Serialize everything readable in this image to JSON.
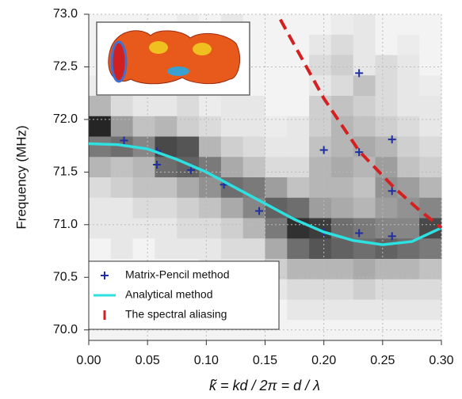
{
  "chart_data": {
    "type": "heatmap",
    "xlabel": "k̃ = kd / 2π = d / λ",
    "ylabel": "Frequency (MHz)",
    "xlim": [
      0,
      0.3
    ],
    "ylim": [
      69.9,
      73.0
    ],
    "xticks": [
      {
        "value": 0,
        "label": "0.00"
      },
      0.05,
      {
        "value": 0.1,
        "label": "0.10"
      },
      0.15,
      {
        "value": 0.2,
        "label": "0.20"
      },
      0.25,
      {
        "value": 0.3,
        "label": "0.30"
      }
    ],
    "yticks": [
      {
        "value": 70,
        "label": "70.0"
      },
      70.5,
      {
        "value": 71,
        "label": "71.0"
      },
      71.5,
      {
        "value": 72,
        "label": "72.0"
      },
      72.5,
      {
        "value": 73,
        "label": "73.0"
      }
    ],
    "grid": true,
    "legend": "bottom-left",
    "heatmap": {
      "z": [
        [
          5,
          5,
          5,
          5,
          8,
          5,
          10,
          5,
          5,
          5,
          5,
          8,
          10,
          5,
          5,
          5
        ],
        [
          5,
          5,
          5,
          5,
          5,
          5,
          5,
          5,
          5,
          5,
          10,
          15,
          10,
          5,
          8,
          5
        ],
        [
          5,
          5,
          5,
          5,
          5,
          5,
          5,
          5,
          5,
          5,
          15,
          20,
          10,
          15,
          10,
          5
        ],
        [
          8,
          5,
          5,
          5,
          5,
          5,
          5,
          5,
          5,
          5,
          10,
          15,
          25,
          15,
          10,
          8
        ],
        [
          30,
          15,
          10,
          10,
          15,
          8,
          10,
          10,
          5,
          5,
          20,
          25,
          20,
          15,
          10,
          10
        ],
        [
          90,
          40,
          25,
          30,
          20,
          15,
          10,
          10,
          8,
          10,
          20,
          30,
          25,
          20,
          15,
          10
        ],
        [
          55,
          60,
          50,
          75,
          70,
          30,
          20,
          15,
          10,
          10,
          25,
          30,
          35,
          30,
          20,
          15
        ],
        [
          30,
          25,
          30,
          60,
          65,
          55,
          35,
          25,
          15,
          15,
          30,
          35,
          30,
          40,
          25,
          20
        ],
        [
          15,
          20,
          25,
          25,
          35,
          45,
          60,
          55,
          40,
          25,
          30,
          30,
          25,
          45,
          40,
          30
        ],
        [
          10,
          10,
          15,
          15,
          20,
          25,
          35,
          50,
          65,
          60,
          40,
          35,
          30,
          40,
          45,
          50
        ],
        [
          10,
          10,
          10,
          10,
          15,
          15,
          20,
          30,
          55,
          85,
          80,
          60,
          55,
          50,
          50,
          75
        ],
        [
          5,
          10,
          5,
          10,
          10,
          10,
          15,
          15,
          35,
          60,
          70,
          65,
          60,
          65,
          60,
          55
        ],
        [
          5,
          5,
          5,
          5,
          5,
          10,
          10,
          10,
          20,
          30,
          30,
          30,
          35,
          30,
          30,
          25
        ],
        [
          5,
          5,
          5,
          5,
          5,
          5,
          5,
          10,
          10,
          15,
          15,
          15,
          20,
          15,
          15,
          15
        ],
        [
          5,
          5,
          5,
          5,
          5,
          5,
          5,
          5,
          5,
          10,
          10,
          10,
          10,
          10,
          10,
          10
        ],
        [
          5,
          5,
          5,
          5,
          5,
          5,
          5,
          5,
          5,
          5,
          5,
          5,
          5,
          5,
          5,
          5
        ]
      ]
    },
    "series": [
      {
        "name": "Matrix-Pencil method",
        "type": "scatter",
        "color": "#1f2fa0",
        "x": [
          0.03,
          0.058,
          0.058,
          0.087,
          0.115,
          0.145,
          0.2,
          0.2,
          0.23,
          0.23,
          0.23,
          0.258,
          0.258,
          0.258
        ],
        "values": [
          71.8,
          71.7,
          71.57,
          71.52,
          71.38,
          71.13,
          70.93,
          71.71,
          72.44,
          71.69,
          70.92,
          71.81,
          71.32,
          70.89
        ]
      },
      {
        "name": "Analytical method",
        "type": "line",
        "color": "#2ee0e0",
        "x": [
          0,
          0.025,
          0.05,
          0.075,
          0.1,
          0.125,
          0.15,
          0.175,
          0.2,
          0.225,
          0.25,
          0.275,
          0.3
        ],
        "values": [
          71.77,
          71.76,
          71.72,
          71.62,
          71.5,
          71.35,
          71.2,
          71.05,
          70.93,
          70.85,
          70.81,
          70.84,
          70.97
        ]
      },
      {
        "name": "The spectral aliasing",
        "type": "dashed",
        "color": "#d42020",
        "x": [
          0.163,
          0.2,
          0.23,
          0.26,
          0.28,
          0.3
        ],
        "values": [
          72.95,
          72.2,
          71.7,
          71.35,
          71.15,
          70.97
        ]
      }
    ]
  }
}
